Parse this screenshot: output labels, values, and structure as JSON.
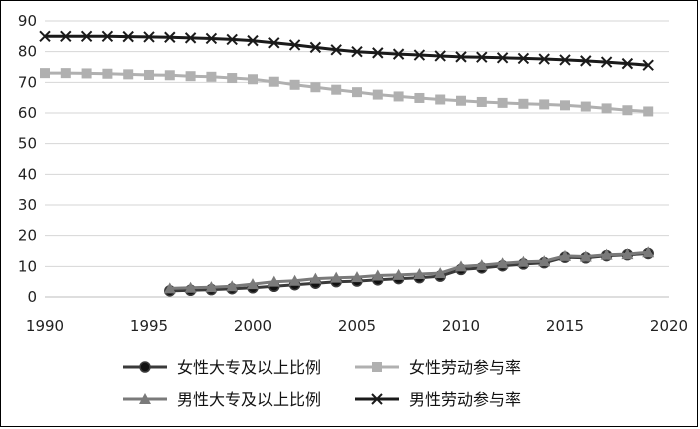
{
  "chart_data": {
    "type": "line",
    "title": "",
    "xlabel": "",
    "ylabel": "",
    "xlim": [
      1990,
      2020
    ],
    "ylim": [
      0,
      90
    ],
    "x_ticks": [
      "1990",
      "1995",
      "2000",
      "2005",
      "2010",
      "2015",
      "2020"
    ],
    "y_ticks": [
      "0",
      "10",
      "20",
      "30",
      "40",
      "50",
      "60",
      "70",
      "80",
      "90"
    ],
    "grid": "horizontal",
    "legend_position": "bottom",
    "series": [
      {
        "name": "女性大专及以上比例",
        "color": "#3a3a3a",
        "marker": "circle",
        "x": [
          1996,
          1997,
          1998,
          1999,
          2000,
          2001,
          2002,
          2003,
          2004,
          2005,
          2006,
          2007,
          2008,
          2009,
          2010,
          2011,
          2012,
          2013,
          2014,
          2015,
          2016,
          2017,
          2018,
          2019
        ],
        "y": [
          2.0,
          2.2,
          2.4,
          2.7,
          3.0,
          3.5,
          4.0,
          4.5,
          5.0,
          5.2,
          5.6,
          6.0,
          6.3,
          6.8,
          9.0,
          9.5,
          10.2,
          10.8,
          11.2,
          13.0,
          12.8,
          13.5,
          13.8,
          14.2
        ]
      },
      {
        "name": "女性劳动参与率",
        "color": "#b0b0b0",
        "marker": "square",
        "x": [
          1990,
          1991,
          1992,
          1993,
          1994,
          1995,
          1996,
          1997,
          1998,
          1999,
          2000,
          2001,
          2002,
          2003,
          2004,
          2005,
          2006,
          2007,
          2008,
          2009,
          2010,
          2011,
          2012,
          2013,
          2014,
          2015,
          2016,
          2017,
          2018,
          2019
        ],
        "y": [
          73.0,
          73.0,
          72.9,
          72.8,
          72.6,
          72.4,
          72.3,
          72.0,
          71.8,
          71.4,
          71.0,
          70.2,
          69.2,
          68.4,
          67.6,
          66.8,
          66.0,
          65.4,
          64.9,
          64.4,
          64.0,
          63.6,
          63.3,
          63.0,
          62.8,
          62.5,
          62.1,
          61.5,
          60.9,
          60.5
        ]
      },
      {
        "name": "男性大专及以上比例",
        "color": "#7a7a7a",
        "marker": "triangle",
        "x": [
          1996,
          1997,
          1998,
          1999,
          2000,
          2001,
          2002,
          2003,
          2004,
          2005,
          2006,
          2007,
          2008,
          2009,
          2010,
          2011,
          2012,
          2013,
          2014,
          2015,
          2016,
          2017,
          2018,
          2019
        ],
        "y": [
          2.8,
          3.0,
          3.2,
          3.5,
          4.2,
          5.0,
          5.3,
          6.0,
          6.3,
          6.5,
          7.0,
          7.2,
          7.5,
          7.8,
          10.0,
          10.4,
          11.0,
          11.5,
          11.7,
          13.4,
          13.2,
          13.8,
          14.0,
          14.6
        ]
      },
      {
        "name": "男性劳动参与率",
        "color": "#1a1a1a",
        "marker": "x",
        "x": [
          1990,
          1991,
          1992,
          1993,
          1994,
          1995,
          1996,
          1997,
          1998,
          1999,
          2000,
          2001,
          2002,
          2003,
          2004,
          2005,
          2006,
          2007,
          2008,
          2009,
          2010,
          2011,
          2012,
          2013,
          2014,
          2015,
          2016,
          2017,
          2018,
          2019
        ],
        "y": [
          85.0,
          85.0,
          85.0,
          85.0,
          84.9,
          84.8,
          84.7,
          84.5,
          84.3,
          84.0,
          83.6,
          82.9,
          82.2,
          81.4,
          80.6,
          80.0,
          79.6,
          79.2,
          78.9,
          78.6,
          78.3,
          78.2,
          78.0,
          77.8,
          77.6,
          77.3,
          77.0,
          76.6,
          76.1,
          75.6
        ]
      }
    ]
  }
}
